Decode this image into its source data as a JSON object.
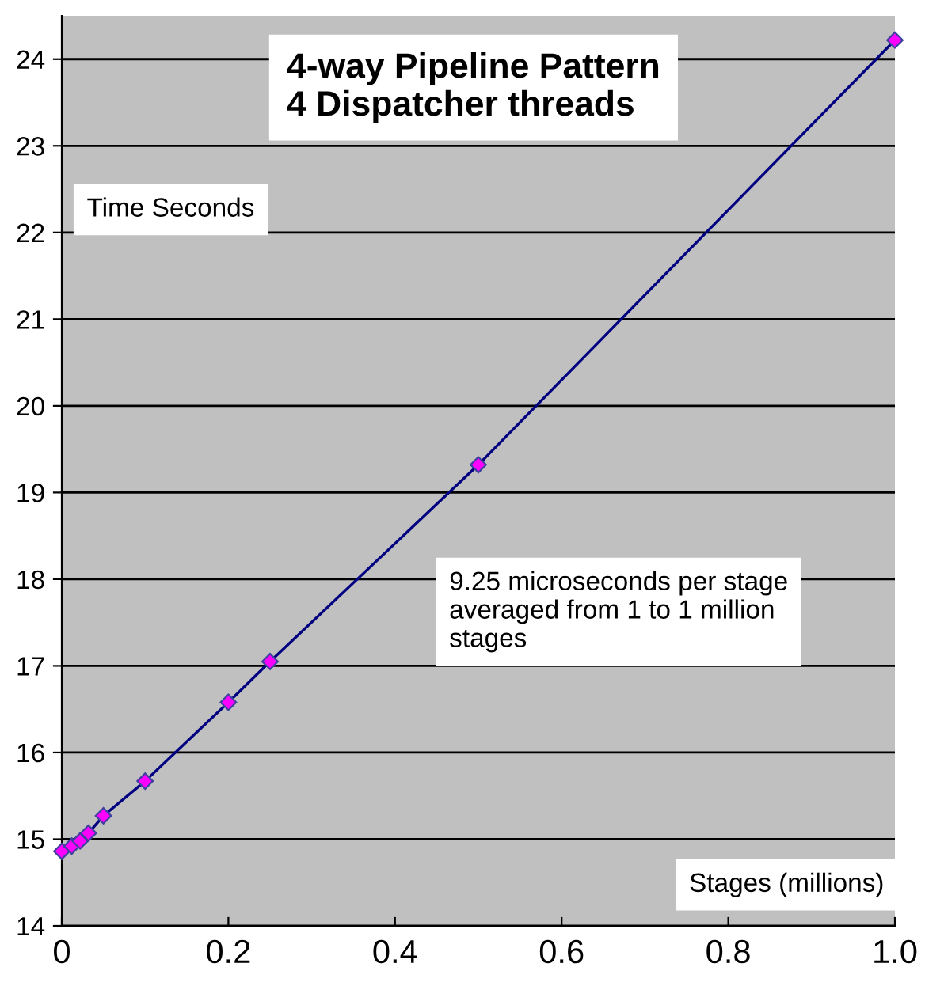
{
  "chart_data": {
    "type": "line",
    "title": "4-way Pipeline Pattern\n4 Dispatcher threads",
    "xlabel": "Stages (millions)",
    "ylabel": "Time Seconds",
    "annotations": [
      "9.25 microseconds per stage\naveraged from 1 to 1 million\nstages"
    ],
    "x": [
      0,
      0.012,
      0.022,
      0.032,
      0.05,
      0.1,
      0.2,
      0.25,
      0.5,
      1.0
    ],
    "series": [
      {
        "color": "#000080",
        "values": [
          14.86,
          14.92,
          14.98,
          15.07,
          15.27,
          15.67,
          16.58,
          17.05,
          19.32,
          24.22
        ]
      }
    ],
    "xlim": [
      0,
      1
    ],
    "xticks": [
      0,
      0.2,
      0.4,
      0.6,
      0.8,
      {
        "value": 1,
        "label": "1.0"
      }
    ],
    "ylim": [
      14,
      24.5
    ],
    "yticks": [
      14,
      15,
      16,
      17,
      18,
      19,
      20,
      21,
      22,
      23,
      24
    ],
    "grid": "y",
    "marker": "diamond",
    "line_style": "solid",
    "legend": false
  }
}
